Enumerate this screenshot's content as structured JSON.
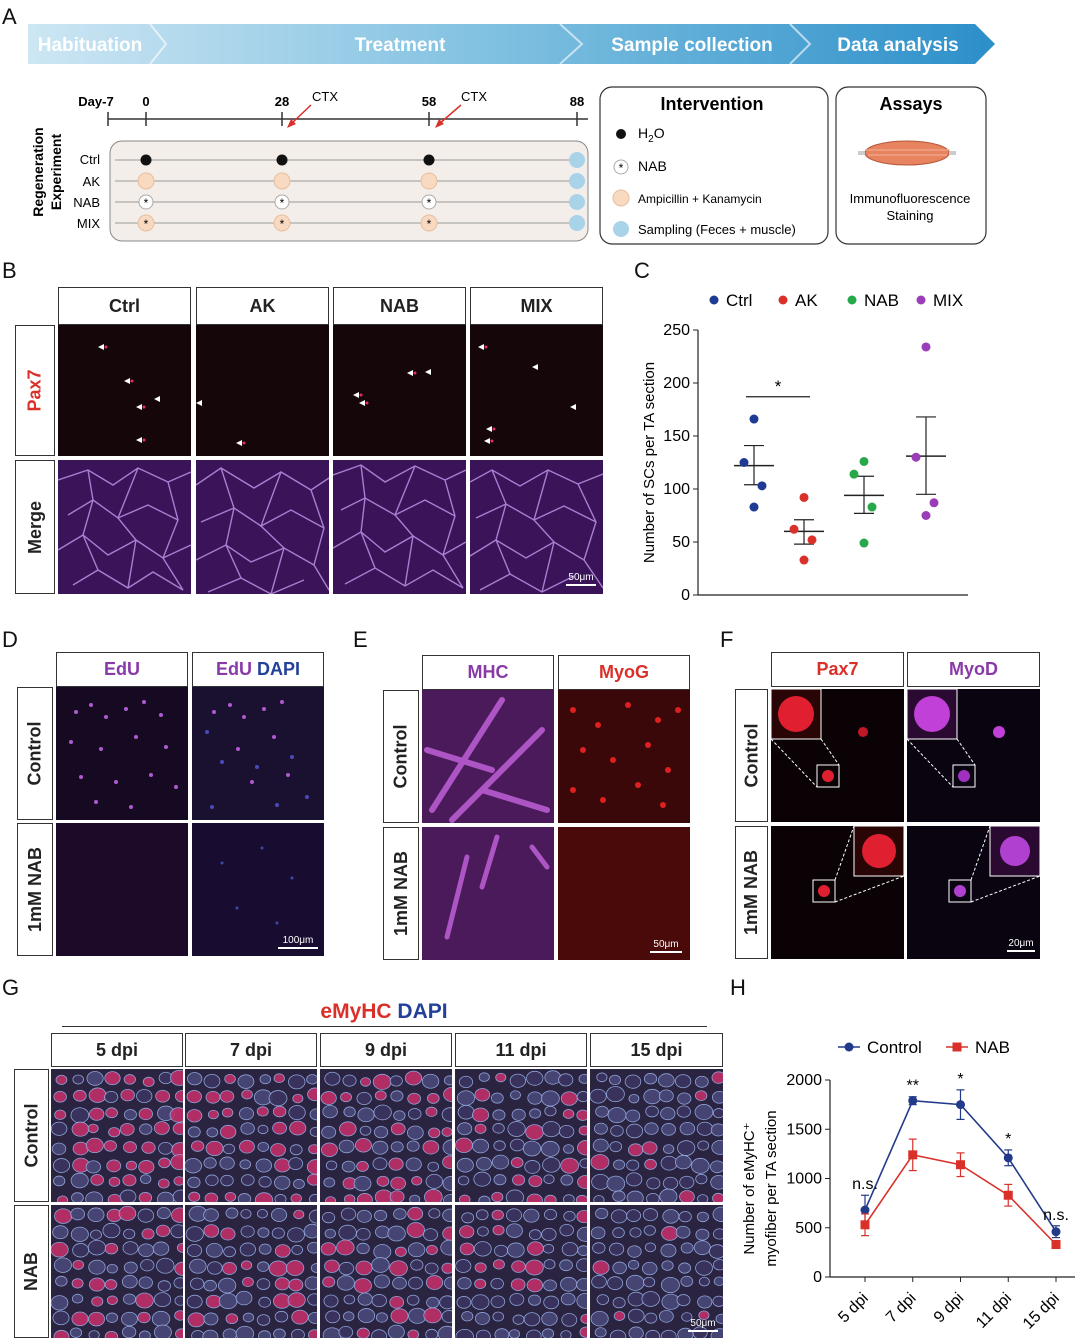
{
  "panel_letters": {
    "a": "A",
    "b": "B",
    "c": "C",
    "d": "D",
    "e": "E",
    "f": "F",
    "g": "G",
    "h": "H"
  },
  "panel_a": {
    "arrow_stages": [
      "Habituation",
      "Treatment",
      "Sample collection",
      "Data analysis"
    ],
    "timeline": {
      "y_label_line1": "Regeneration",
      "y_label_line2": "Experiment",
      "days": [
        "Day-7",
        "0",
        "28",
        "58",
        "88"
      ],
      "ctx": "CTX",
      "groups": [
        "Ctrl",
        "AK",
        "NAB",
        "MIX"
      ]
    },
    "intervention": {
      "title": "Intervention",
      "h2o_main": "H",
      "h2o_sub": "2",
      "h2o_end": "O",
      "nab": "NAB",
      "abx": "Ampicillin + Kanamycin",
      "sampling": "Sampling (Feces + muscle)"
    },
    "assays": {
      "title": "Assays",
      "line1": "Immunofluorescence",
      "line2": "Staining"
    }
  },
  "panel_b": {
    "columns": [
      "Ctrl",
      "AK",
      "NAB",
      "MIX"
    ],
    "rows": [
      "Pax7",
      "Merge"
    ],
    "scale": "50μm"
  },
  "panel_d": {
    "col1": "EdU",
    "col2_a": "EdU",
    "col2_b": "DAPI",
    "rows": [
      "Control",
      "1mM NAB"
    ],
    "scale": "100μm"
  },
  "panel_e": {
    "columns": [
      "MHC",
      "MyoG"
    ],
    "rows": [
      "Control",
      "1mM NAB"
    ],
    "scale": "50μm"
  },
  "panel_f": {
    "columns": [
      "Pax7",
      "MyoD"
    ],
    "rows": [
      "Control",
      "1mM NAB"
    ],
    "scale": "20μm"
  },
  "panel_g": {
    "title_a": "eMyHC",
    "title_b": "DAPI",
    "columns": [
      "5 dpi",
      "7 dpi",
      "9 dpi",
      "11 dpi",
      "15 dpi"
    ],
    "rows": [
      "Control",
      "NAB"
    ],
    "scale": "50μm"
  },
  "colors": {
    "arrow": "#3a9bcf",
    "red": "#d9312a",
    "blue": "#1f3a93",
    "purple": "#9b3cb8",
    "green": "#27a84a",
    "navy": "#233a8a"
  },
  "chart_data": [
    {
      "id": "C",
      "type": "scatter",
      "ylabel": "Number of SCs per TA section",
      "ylim": [
        0,
        250
      ],
      "yticks": [
        0,
        50,
        100,
        150,
        200,
        250
      ],
      "legend": [
        "Ctrl",
        "AK",
        "NAB",
        "MIX"
      ],
      "series": [
        {
          "name": "Ctrl",
          "points": [
            166,
            125,
            103,
            83
          ],
          "mean": 122,
          "sem_low": 104,
          "sem_high": 141,
          "color": "#1f3a93"
        },
        {
          "name": "AK",
          "points": [
            92,
            62,
            52,
            33
          ],
          "mean": 60,
          "sem_low": 48,
          "sem_high": 71,
          "color": "#d9312a"
        },
        {
          "name": "NAB",
          "points": [
            126,
            114,
            83,
            49
          ],
          "mean": 94,
          "sem_low": 77,
          "sem_high": 112,
          "color": "#27a84a"
        },
        {
          "name": "MIX",
          "points": [
            234,
            130,
            87,
            75
          ],
          "mean": 131,
          "sem_low": 95,
          "sem_high": 168,
          "color": "#9b3cb8"
        }
      ],
      "significance": {
        "label": "*",
        "between": [
          "Ctrl",
          "AK"
        ]
      }
    },
    {
      "id": "H",
      "type": "line",
      "ylabel_line1": "Number of eMyHC⁺",
      "ylabel_line2": "myofiber per TA section",
      "categories": [
        "5 dpi",
        "7 dpi",
        "9 dpi",
        "11 dpi",
        "15 dpi"
      ],
      "ylim": [
        0,
        2000
      ],
      "yticks": [
        0,
        500,
        1000,
        1500,
        2000
      ],
      "series": [
        {
          "name": "Control",
          "values": [
            680,
            1790,
            1750,
            1210,
            460
          ],
          "err": [
            150,
            40,
            150,
            80,
            60
          ],
          "color": "#233a8a"
        },
        {
          "name": "NAB",
          "values": [
            530,
            1240,
            1140,
            830,
            330
          ],
          "err": [
            110,
            160,
            120,
            110,
            40
          ],
          "color": "#d9312a"
        }
      ],
      "annotations": [
        "n.s.",
        "**",
        "*",
        "*",
        "n.s."
      ]
    }
  ]
}
